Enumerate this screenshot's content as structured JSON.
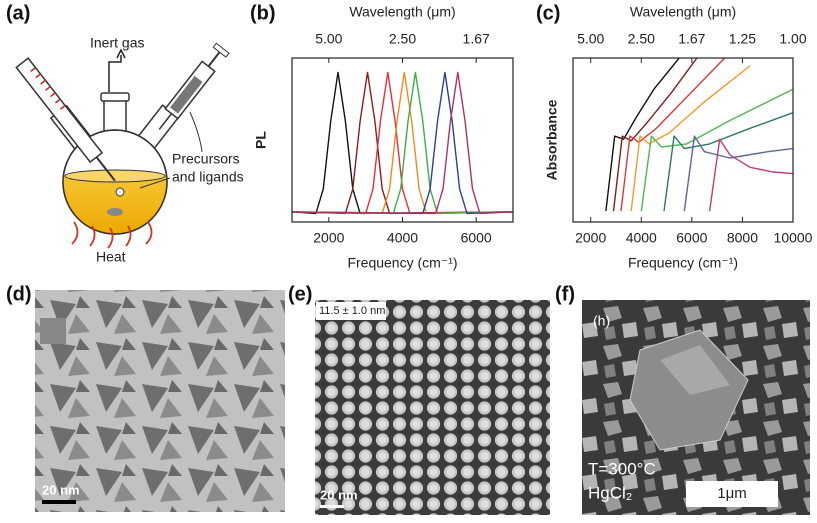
{
  "panels": {
    "a": {
      "label": "(a)",
      "gas": "Inert gas",
      "precursors": [
        "Precursors",
        "and ligands"
      ],
      "heat": "Heat"
    },
    "d": {
      "label": "(d)",
      "scale_bar": "20 nm"
    },
    "e": {
      "label": "(e)",
      "size": "11.5 ± 1.0 nm",
      "scale_bar": "20 nm"
    },
    "f": {
      "label": "(f)",
      "inset": "(h)",
      "temperature": "T=300°C",
      "precursor": "HgCl₂",
      "scale_bar": "1μm"
    }
  },
  "chart_data": [
    {
      "type": "line",
      "panel_label": "(b)",
      "x_label": "Frequency (cm⁻¹)",
      "x2_label": "Wavelength (μm)",
      "y_label": "PL",
      "xlim": [
        1000,
        7000
      ],
      "xticks": [
        2000,
        4000,
        6000
      ],
      "x2ticks": [
        {
          "value": 2000,
          "label": "5.00"
        },
        {
          "value": 4000,
          "label": "2.50"
        },
        {
          "value": 6000,
          "label": "1.67"
        }
      ],
      "ylim": [
        -0.04,
        1.1
      ],
      "series": [
        {
          "color": "#111111",
          "x": [
            1000,
            1650,
            1850,
            2050,
            2250,
            2450,
            2650,
            2850,
            7000
          ],
          "values": [
            0.03,
            0.02,
            0.19,
            0.66,
            1,
            0.66,
            0.19,
            0.02,
            0.03
          ]
        },
        {
          "color": "#8b1c1c",
          "x": [
            1000,
            2450,
            2650,
            2850,
            3050,
            3250,
            3450,
            3650,
            7000
          ],
          "values": [
            0.03,
            0.02,
            0.19,
            0.66,
            1,
            0.66,
            0.19,
            0.02,
            0.03
          ]
        },
        {
          "color": "#e0303a",
          "x": [
            1000,
            3000,
            3200,
            3400,
            3600,
            3800,
            4000,
            4200,
            7000
          ],
          "values": [
            0.03,
            0.02,
            0.19,
            0.66,
            1,
            0.66,
            0.19,
            0.02,
            0.03
          ]
        },
        {
          "color": "#f08a20",
          "x": [
            1000,
            3450,
            3650,
            3850,
            4050,
            4250,
            4450,
            4650,
            7000
          ],
          "values": [
            0.03,
            0.02,
            0.19,
            0.66,
            1,
            0.66,
            0.19,
            0.02,
            0.03
          ]
        },
        {
          "color": "#3cb043",
          "x": [
            1000,
            3750,
            3950,
            4150,
            4350,
            4550,
            4750,
            4950,
            7000
          ],
          "values": [
            0.03,
            0.02,
            0.19,
            0.66,
            1,
            0.66,
            0.19,
            0.02,
            0.03
          ]
        },
        {
          "color": "#2f3f8f",
          "x": [
            1000,
            4550,
            4750,
            4950,
            5150,
            5350,
            5550,
            5750,
            7000
          ],
          "values": [
            0.03,
            0.02,
            0.19,
            0.66,
            1,
            0.66,
            0.19,
            0.02,
            0.03
          ]
        },
        {
          "color": "#b0306a",
          "x": [
            1000,
            4900,
            5100,
            5300,
            5500,
            5700,
            5900,
            6100,
            7000
          ],
          "values": [
            0.03,
            0.02,
            0.19,
            0.66,
            1,
            0.66,
            0.19,
            0.02,
            0.03
          ]
        }
      ]
    },
    {
      "type": "line",
      "panel_label": "(c)",
      "x_label": "Frequency (cm⁻¹)",
      "x2_label": "Wavelength (μm)",
      "y_label": "Absorbance",
      "xlim": [
        1300,
        10000
      ],
      "xticks": [
        2000,
        4000,
        6000,
        8000,
        10000
      ],
      "x2ticks": [
        {
          "value": 2000,
          "label": "5.00"
        },
        {
          "value": 4000,
          "label": "2.50"
        },
        {
          "value": 6000,
          "label": "1.67"
        },
        {
          "value": 8000,
          "label": "1.25"
        },
        {
          "value": 10000,
          "label": "1.00"
        }
      ],
      "ylim": [
        -0.05,
        1.0
      ],
      "series": [
        {
          "color": "#111111",
          "x": [
            2600,
            2950,
            3300,
            3800,
            4500,
            5500
          ],
          "values": [
            0.02,
            0.5,
            0.48,
            0.62,
            0.8,
            1.0
          ]
        },
        {
          "color": "#7a1f1f",
          "x": [
            2900,
            3250,
            3600,
            4200,
            5200,
            6200
          ],
          "values": [
            0.02,
            0.5,
            0.47,
            0.58,
            0.78,
            1.0
          ]
        },
        {
          "color": "#d83a3a",
          "x": [
            3200,
            3550,
            3900,
            4600,
            5800,
            7300
          ],
          "values": [
            0.02,
            0.5,
            0.46,
            0.55,
            0.75,
            1.0
          ]
        },
        {
          "color": "#f29a2e",
          "x": [
            3600,
            3950,
            4300,
            5100,
            6500,
            8300
          ],
          "values": [
            0.02,
            0.5,
            0.45,
            0.52,
            0.72,
            0.95
          ]
        },
        {
          "color": "#4fb84f",
          "x": [
            4000,
            4400,
            4800,
            5800,
            7500,
            10000
          ],
          "values": [
            0.02,
            0.5,
            0.43,
            0.45,
            0.6,
            0.8
          ]
        },
        {
          "color": "#2b7a5e",
          "x": [
            4900,
            5300,
            5700,
            6700,
            8300,
            10000
          ],
          "values": [
            0.02,
            0.5,
            0.42,
            0.45,
            0.55,
            0.65
          ]
        },
        {
          "color": "#5a6a95",
          "x": [
            5700,
            6100,
            6500,
            7500,
            9000,
            10000
          ],
          "values": [
            0.02,
            0.5,
            0.4,
            0.36,
            0.4,
            0.42
          ]
        },
        {
          "color": "#c23a7a",
          "x": [
            6700,
            7100,
            7500,
            8300,
            9200,
            10000
          ],
          "values": [
            0.02,
            0.48,
            0.38,
            0.3,
            0.27,
            0.26
          ]
        }
      ]
    }
  ]
}
